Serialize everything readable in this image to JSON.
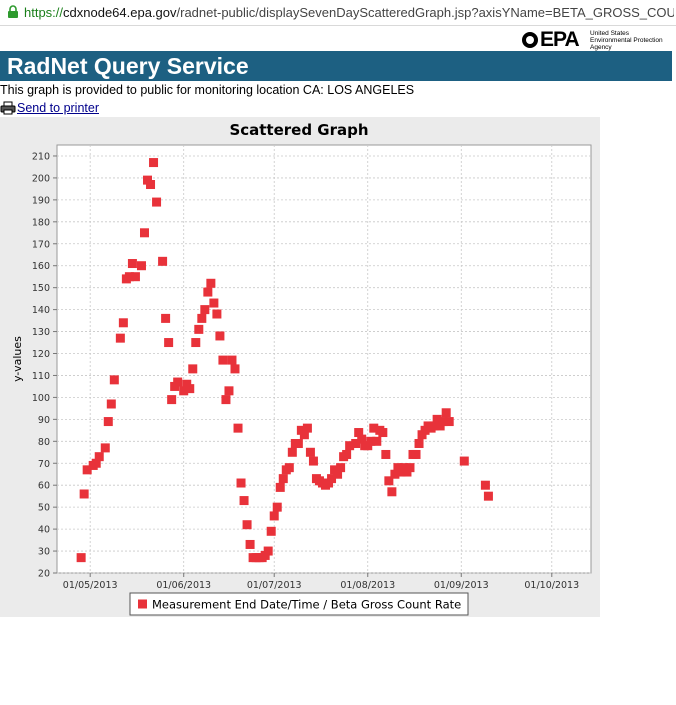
{
  "browser": {
    "url_protocol": "https://",
    "url_host": "cdxnode64.epa.gov",
    "url_path": "/radnet-public/displaySevenDayScatteredGraph.jsp?axisYName=BETA_GROSS_COUNT_RATE&sc"
  },
  "logo": {
    "mark": "EPA",
    "agency_line1": "United States",
    "agency_line2": "Environmental Protection",
    "agency_line3": "Agency"
  },
  "header": {
    "title": "RadNet Query Service"
  },
  "description": "This graph is provided to public for monitoring location CA: LOS ANGELES",
  "print_link": "Send to printer",
  "colors": {
    "banner": "#1d6082",
    "marker": "#e8323a",
    "plot_bg": "#ffffff",
    "panel_bg": "#ebebeb"
  },
  "chart_data": {
    "type": "scatter",
    "title": "Scattered Graph",
    "ylabel": "y-values",
    "xlabel": "",
    "ylim": [
      20,
      215
    ],
    "yticks": [
      20,
      30,
      40,
      50,
      60,
      70,
      80,
      90,
      100,
      110,
      120,
      130,
      140,
      150,
      160,
      170,
      180,
      190,
      200,
      210
    ],
    "xlim": [
      "2013-04-20",
      "2013-10-14"
    ],
    "xticks": [
      "2013-05-01",
      "2013-06-01",
      "2013-07-01",
      "2013-08-01",
      "2013-09-01",
      "2013-10-01"
    ],
    "xtick_labels": [
      "01/05/2013",
      "01/06/2013",
      "01/07/2013",
      "01/08/2013",
      "01/09/2013",
      "01/10/2013"
    ],
    "grid": true,
    "legend_position": "bottom",
    "series": [
      {
        "name": "Measurement End Date/Time / Beta Gross Count Rate",
        "points": [
          [
            "2013-04-28",
            27
          ],
          [
            "2013-04-29",
            56
          ],
          [
            "2013-04-30",
            67
          ],
          [
            "2013-05-02",
            69
          ],
          [
            "2013-05-03",
            70
          ],
          [
            "2013-05-04",
            73
          ],
          [
            "2013-05-06",
            77
          ],
          [
            "2013-05-07",
            89
          ],
          [
            "2013-05-08",
            97
          ],
          [
            "2013-05-09",
            108
          ],
          [
            "2013-05-11",
            127
          ],
          [
            "2013-05-12",
            134
          ],
          [
            "2013-05-13",
            154
          ],
          [
            "2013-05-14",
            155
          ],
          [
            "2013-05-15",
            161
          ],
          [
            "2013-05-16",
            155
          ],
          [
            "2013-05-18",
            160
          ],
          [
            "2013-05-19",
            175
          ],
          [
            "2013-05-20",
            199
          ],
          [
            "2013-05-21",
            197
          ],
          [
            "2013-05-22",
            207
          ],
          [
            "2013-05-23",
            189
          ],
          [
            "2013-05-25",
            162
          ],
          [
            "2013-05-26",
            136
          ],
          [
            "2013-05-27",
            125
          ],
          [
            "2013-05-28",
            99
          ],
          [
            "2013-05-29",
            105
          ],
          [
            "2013-05-30",
            107
          ],
          [
            "2013-06-01",
            103
          ],
          [
            "2013-06-02",
            106
          ],
          [
            "2013-06-03",
            104
          ],
          [
            "2013-06-04",
            113
          ],
          [
            "2013-06-05",
            125
          ],
          [
            "2013-06-06",
            131
          ],
          [
            "2013-06-07",
            136
          ],
          [
            "2013-06-08",
            140
          ],
          [
            "2013-06-09",
            148
          ],
          [
            "2013-06-10",
            152
          ],
          [
            "2013-06-11",
            143
          ],
          [
            "2013-06-12",
            138
          ],
          [
            "2013-06-13",
            128
          ],
          [
            "2013-06-14",
            117
          ],
          [
            "2013-06-15",
            99
          ],
          [
            "2013-06-16",
            103
          ],
          [
            "2013-06-17",
            117
          ],
          [
            "2013-06-18",
            113
          ],
          [
            "2013-06-19",
            86
          ],
          [
            "2013-06-20",
            61
          ],
          [
            "2013-06-21",
            53
          ],
          [
            "2013-06-22",
            42
          ],
          [
            "2013-06-23",
            33
          ],
          [
            "2013-06-24",
            27
          ],
          [
            "2013-06-25",
            27
          ],
          [
            "2013-06-26",
            27
          ],
          [
            "2013-06-27",
            27
          ],
          [
            "2013-06-28",
            28
          ],
          [
            "2013-06-29",
            30
          ],
          [
            "2013-06-30",
            39
          ],
          [
            "2013-07-01",
            46
          ],
          [
            "2013-07-02",
            50
          ],
          [
            "2013-07-03",
            59
          ],
          [
            "2013-07-04",
            63
          ],
          [
            "2013-07-05",
            67
          ],
          [
            "2013-07-06",
            68
          ],
          [
            "2013-07-07",
            75
          ],
          [
            "2013-07-08",
            79
          ],
          [
            "2013-07-09",
            79
          ],
          [
            "2013-07-10",
            85
          ],
          [
            "2013-07-11",
            83
          ],
          [
            "2013-07-12",
            86
          ],
          [
            "2013-07-13",
            75
          ],
          [
            "2013-07-14",
            71
          ],
          [
            "2013-07-15",
            63
          ],
          [
            "2013-07-16",
            62
          ],
          [
            "2013-07-17",
            61
          ],
          [
            "2013-07-18",
            60
          ],
          [
            "2013-07-19",
            61
          ],
          [
            "2013-07-20",
            63
          ],
          [
            "2013-07-21",
            67
          ],
          [
            "2013-07-22",
            65
          ],
          [
            "2013-07-23",
            68
          ],
          [
            "2013-07-24",
            73
          ],
          [
            "2013-07-25",
            74
          ],
          [
            "2013-07-26",
            78
          ],
          [
            "2013-07-28",
            79
          ],
          [
            "2013-07-29",
            84
          ],
          [
            "2013-07-30",
            81
          ],
          [
            "2013-07-31",
            78
          ],
          [
            "2013-08-01",
            78
          ],
          [
            "2013-08-02",
            80
          ],
          [
            "2013-08-03",
            86
          ],
          [
            "2013-08-04",
            80
          ],
          [
            "2013-08-05",
            85
          ],
          [
            "2013-08-06",
            84
          ],
          [
            "2013-08-07",
            74
          ],
          [
            "2013-08-08",
            62
          ],
          [
            "2013-08-09",
            57
          ],
          [
            "2013-08-10",
            65
          ],
          [
            "2013-08-11",
            68
          ],
          [
            "2013-08-12",
            66
          ],
          [
            "2013-08-13",
            68
          ],
          [
            "2013-08-14",
            66
          ],
          [
            "2013-08-15",
            68
          ],
          [
            "2013-08-16",
            74
          ],
          [
            "2013-08-17",
            74
          ],
          [
            "2013-08-18",
            79
          ],
          [
            "2013-08-19",
            83
          ],
          [
            "2013-08-20",
            85
          ],
          [
            "2013-08-21",
            87
          ],
          [
            "2013-08-22",
            86
          ],
          [
            "2013-08-23",
            87
          ],
          [
            "2013-08-24",
            90
          ],
          [
            "2013-08-25",
            87
          ],
          [
            "2013-08-26",
            89
          ],
          [
            "2013-08-27",
            93
          ],
          [
            "2013-08-28",
            89
          ],
          [
            "2013-09-02",
            71
          ],
          [
            "2013-09-09",
            60
          ],
          [
            "2013-09-10",
            55
          ]
        ]
      }
    ]
  }
}
